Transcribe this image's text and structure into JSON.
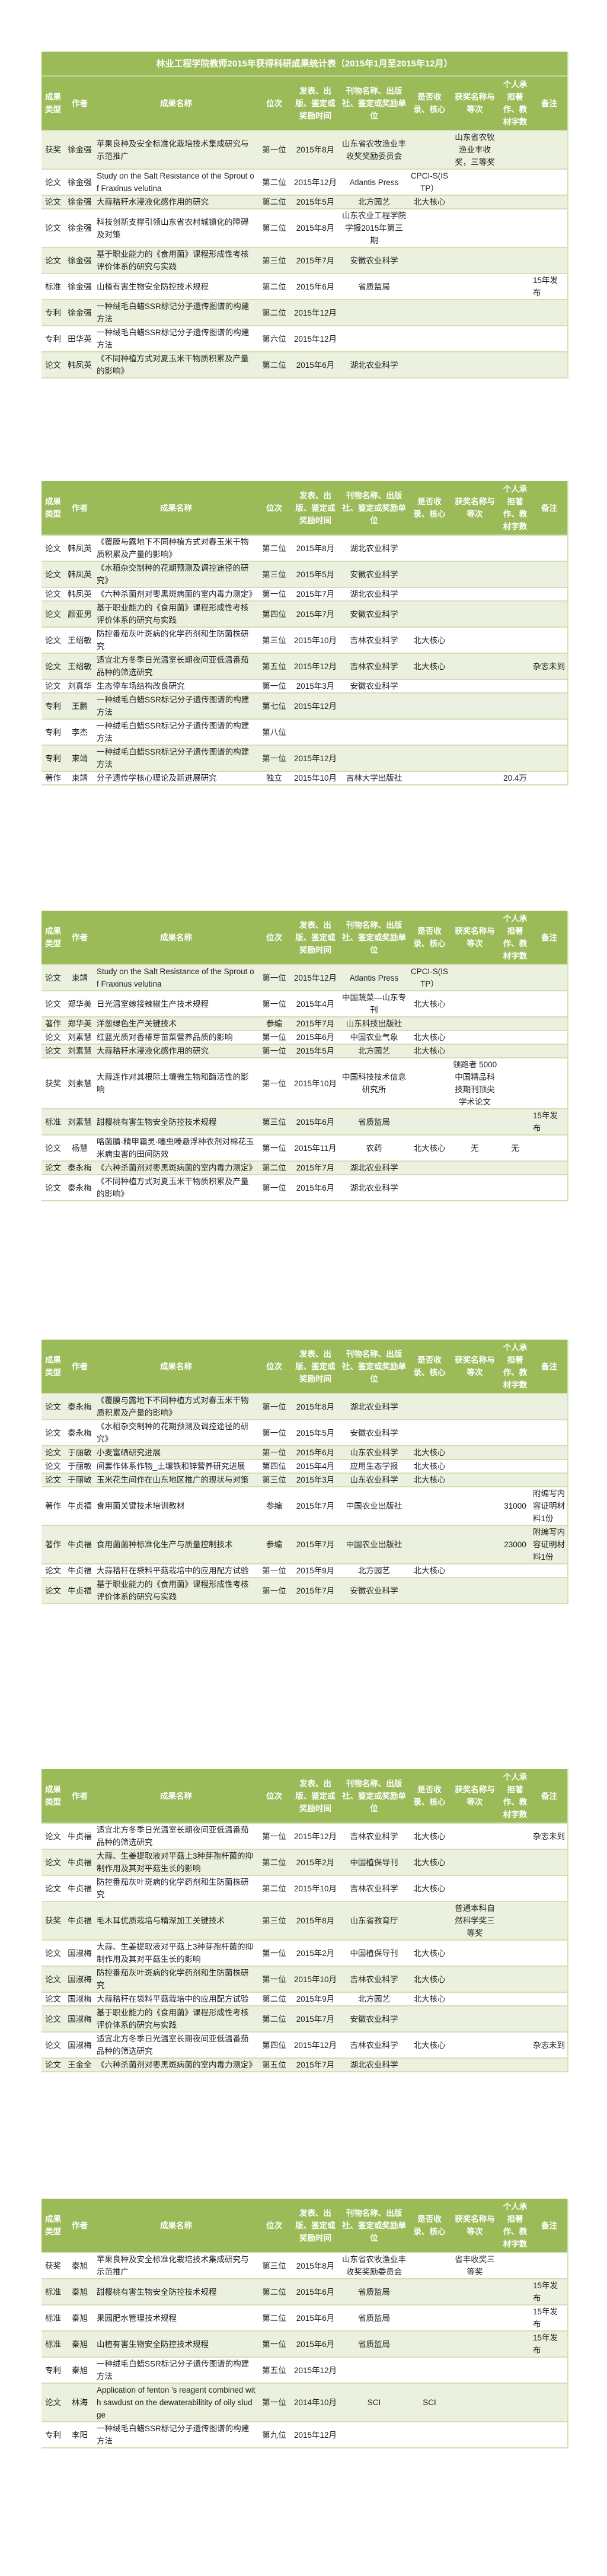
{
  "title": "林业工程学院教师2015年获得科研成果统计表（2015年1月至2015年12月）",
  "columns": [
    "成果类型",
    "作者",
    "成果名称",
    "位次",
    "发表、出版、鉴定或奖励时间",
    "刊物名称、出版社、鉴定或奖励单位",
    "是否收录、核心",
    "获奖名称与等次",
    "个人承担著作、教材字数",
    "备注"
  ],
  "colors": {
    "header": "#9bbb59",
    "stripe": "#ebf1de",
    "border": "#d3e0b3"
  },
  "tables": [
    {
      "rows": [
        [
          "获奖",
          "徐金强",
          "苹果良种及安全标准化栽培技术集成研究与示范推广",
          "第一位",
          "2015年8月",
          "山东省农牧渔业丰收奖奖励委员会",
          "",
          "山东省农牧渔业丰收奖，三等奖",
          "",
          ""
        ],
        [
          "论文",
          "徐金强",
          "Study on the Salt Resistance of the Sprout of Fraxinus velutina",
          "第二位",
          "2015年12月",
          "Atlantis Press",
          "CPCI-S(ISTP）",
          "",
          "",
          ""
        ],
        [
          "论文",
          "徐金强",
          "大蒜秸秆水浸液化感作用的研究",
          "第二位",
          "2015年5月",
          "北方园艺",
          "北大核心",
          "",
          "",
          ""
        ],
        [
          "论文",
          "徐金强",
          "科技创新支撑引领山东省农村城镇化的障碍及对策",
          "第二位",
          "2015年8月",
          "山东农业工程学院学报2015年第三期",
          "",
          "",
          "",
          ""
        ],
        [
          "论文",
          "徐金强",
          "基于职业能力的《食用菌》课程形成性考核评价体系的研究与实践",
          "第三位",
          "2015年7月",
          "安徽农业科学",
          "",
          "",
          "",
          ""
        ],
        [
          "标准",
          "徐金强",
          "山楂有害生物安全防控技术规程",
          "第二位",
          "2015年6月",
          "省质监局",
          "",
          "",
          "",
          "15年发布"
        ],
        [
          "专利",
          "徐金强",
          "一种绒毛白蜡SSR标记分子遗传图谱的构建方法",
          "第二位",
          "2015年12月",
          "",
          "",
          "",
          "",
          ""
        ],
        [
          "专利",
          "田华英",
          "一种绒毛白蜡SSR标记分子遗传图谱的构建方法",
          "第六位",
          "2015年12月",
          "",
          "",
          "",
          "",
          ""
        ],
        [
          "论文",
          "韩凤英",
          "《不同种植方式对夏玉米干物质积累及产量的影响》",
          "第二位",
          "2015年6月",
          "湖北农业科学",
          "",
          "",
          "",
          ""
        ]
      ]
    },
    {
      "rows": [
        [
          "论文",
          "韩凤英",
          "《覆膜与露地下不同种植方式对春玉米干物质积累及产量的影响》",
          "第二位",
          "2015年8月",
          "湖北农业科学",
          "",
          "",
          "",
          ""
        ],
        [
          "论文",
          "韩凤英",
          "《水稻杂交制种的花期预测及调控途径的研究》",
          "第三位",
          "2015年5月",
          "安徽农业科学",
          "",
          "",
          "",
          ""
        ],
        [
          "论文",
          "韩凤英",
          "《六种杀菌剂对枣黑斑病菌的室内毒力测定》",
          "第一位",
          "2015年7月",
          "湖北农业科学",
          "",
          "",
          "",
          ""
        ],
        [
          "论文",
          "颜亚男",
          "基于职业能力的《食用菌》课程形成性考核评价体系的研究与实践",
          "第四位",
          "2015年7月",
          "安徽农业科学",
          "",
          "",
          "",
          ""
        ],
        [
          "论文",
          "王绍敏",
          "防控番茄灰叶斑病的化学药剂和生防菌株研究",
          "第三位",
          "2015年10月",
          "吉林农业科学",
          "北大核心",
          "",
          "",
          ""
        ],
        [
          "论文",
          "王绍敏",
          "适宜北方冬季日光温室长期夜间亚低温番茄品种的筛选研究",
          "第五位",
          "2015年12月",
          "吉林农业科学",
          "北大核心",
          "",
          "",
          "杂志未到"
        ],
        [
          "论文",
          "刘真华",
          "生态停车场结构改良研究",
          "第一位",
          "2015年3月",
          "安徽农业科学",
          "",
          "",
          "",
          ""
        ],
        [
          "专利",
          "王鹏",
          "一种绒毛白蜡SSR标记分子遗传图谱的构建方法",
          "第七位",
          "2015年12月",
          "",
          "",
          "",
          "",
          ""
        ],
        [
          "专利",
          "李杰",
          "一种绒毛白蜡SSR标记分子遗传图谱的构建方法",
          "第八位",
          "",
          "",
          "",
          "",
          "",
          ""
        ],
        [
          "专利",
          "束靖",
          "一种绒毛白蜡SSR标记分子遗传图谱的构建方法",
          "第一位",
          "2015年12月",
          "",
          "",
          "",
          "",
          ""
        ],
        [
          "著作",
          "束靖",
          "分子遗传学核心理论及新进展研究",
          "独立",
          "2015年10月",
          "吉林大学出版社",
          "",
          "",
          "20.4万",
          ""
        ]
      ]
    },
    {
      "rows": [
        [
          "论文",
          "束靖",
          "Study on the Salt Resistance of the Sprout of Fraxinus velutina",
          "第一位",
          "2015年12月",
          "Atlantis Press",
          "CPCI-S(ISTP）",
          "",
          "",
          ""
        ],
        [
          "论文",
          "郑华美",
          "日光温室嫁接辣椒生产技术规程",
          "第一位",
          "2015年4月",
          "中国蔬菜—山东专刊",
          "北大核心",
          "",
          "",
          ""
        ],
        [
          "著作",
          "郑华美",
          "洋葱绿色生产关键技术",
          "参编",
          "2015年7月",
          "山东科技出版社",
          "",
          "",
          "",
          ""
        ],
        [
          "论文",
          "刘素慧",
          "红蓝光质对香椿芽苗菜营养品质的影响",
          "第一位",
          "2015年6月",
          "中国农业气象",
          "北大核心",
          "",
          "",
          ""
        ],
        [
          "论文",
          "刘素慧",
          "大蒜秸秆水浸液化感作用的研究",
          "第一位",
          "2015年5月",
          "北方园艺",
          "北大核心",
          "",
          "",
          ""
        ],
        [
          "获奖",
          "刘素慧",
          "大蒜连作对其根际土壤微生物和酶活性的影响",
          "第一位",
          "2015年10月",
          "中国科技技术信息研究所",
          "",
          "领跑者 5000 中国精品科技期刊顶尖学术论文",
          "",
          ""
        ],
        [
          "标准",
          "刘素慧",
          "甜樱桃有害生物安全防控技术规程",
          "第三位",
          "2015年6月",
          "省质监局",
          "",
          "",
          "",
          "15年发布"
        ],
        [
          "论文",
          "杨慧",
          "咯菌腈·精甲霜灵·噻虫嗪悬浮种衣剂对棉花玉米病虫害的田间防效",
          "第一位",
          "2015年11月",
          "农药",
          "北大核心",
          "无",
          "无",
          ""
        ],
        [
          "论文",
          "秦永梅",
          "《六种杀菌剂对枣黑斑病菌的室内毒力测定》",
          "第二位",
          "2015年7月",
          "湖北农业科学",
          "",
          "",
          "",
          ""
        ],
        [
          "论文",
          "秦永梅",
          "《不同种植方式对夏玉米干物质积累及产量的影响》",
          "第一位",
          "2015年6月",
          "湖北农业科学",
          "",
          "",
          "",
          ""
        ]
      ]
    },
    {
      "rows": [
        [
          "论文",
          "秦永梅",
          "《覆膜与露地下不同种植方式对春玉米干物质积累及产量的影响》",
          "第一位",
          "2015年8月",
          "湖北农业科学",
          "",
          "",
          "",
          ""
        ],
        [
          "论文",
          "秦永梅",
          "《水稻杂交制种的花期预测及调控途径的研究》",
          "第一位",
          "2015年5月",
          "安徽农业科学",
          "",
          "",
          "",
          ""
        ],
        [
          "论文",
          "于丽敏",
          "小麦富硒研究进展",
          "第一位",
          "2015年6月",
          "山东农业科学",
          "北大核心",
          "",
          "",
          ""
        ],
        [
          "论文",
          "于丽敏",
          "间套作体系作物_土壤铁和锌营养研究进展",
          "第四位",
          "2015年4月",
          "应用生态学报",
          "北大核心",
          "",
          "",
          ""
        ],
        [
          "论文",
          "于丽敏",
          "玉米花生间作在山东地区推广的现状与对策",
          "第三位",
          "2015年3月",
          "山东农业科学",
          "北大核心",
          "",
          "",
          ""
        ],
        [
          "著作",
          "牛贞福",
          "食用菌关键技术培训教材",
          "参编",
          "2015年7月",
          "中国农业出版社",
          "",
          "",
          "31000",
          "附编写内容证明材料1份"
        ],
        [
          "著作",
          "牛贞福",
          "食用菌菌种标准化生产与质量控制技术",
          "参编",
          "2015年7月",
          "中国农业出版社",
          "",
          "",
          "23000",
          "附编写内容证明材料1份"
        ],
        [
          "论文",
          "牛贞福",
          "大蒜秸秆在袋料平菇栽培中的应用配方试验",
          "第一位",
          "2015年9月",
          "北方园艺",
          "北大核心",
          "",
          "",
          ""
        ],
        [
          "论文",
          "牛贞福",
          "基于职业能力的《食用菌》课程形成性考核评价体系的研究与实践",
          "第一位",
          "2015年7月",
          "安徽农业科学",
          "",
          "",
          "",
          ""
        ]
      ]
    },
    {
      "rows": [
        [
          "论文",
          "牛贞福",
          "适宜北方冬季日光温室长期夜间亚低温番茄品种的筛选研究",
          "第一位",
          "2015年12月",
          "吉林农业科学",
          "北大核心",
          "",
          "",
          "杂志未到"
        ],
        [
          "论文",
          "牛贞福",
          "大蒜、生姜提取液对平菇上3种芽孢杆菌的抑制作用及其对平菇生长的影响",
          "第二位",
          "2015年2月",
          "中国植保导刊",
          "北大核心",
          "",
          "",
          ""
        ],
        [
          "论文",
          "牛贞福",
          "防控番茄灰叶斑病的化学药剂和生防菌株研究",
          "第二位",
          "2015年10月",
          "吉林农业科学",
          "北大核心",
          "",
          "",
          ""
        ],
        [
          "获奖",
          "牛贞福",
          "毛木耳优质栽培与精深加工关键技术",
          "第三位",
          "2015年8月",
          "山东省教育厅",
          "",
          "普通本科自然科学奖三等奖",
          "",
          ""
        ],
        [
          "论文",
          "国淑梅",
          "大蒜、生姜提取液对平菇上3种芽孢杆菌的抑制作用及其对平菇生长的影响",
          "第一位",
          "2015年2月",
          "中国植保导刊",
          "北大核心",
          "",
          "",
          ""
        ],
        [
          "论文",
          "国淑梅",
          "防控番茄灰叶斑病的化学药剂和生防菌株研究",
          "第一位",
          "2015年10月",
          "吉林农业科学",
          "北大核心",
          "",
          "",
          ""
        ],
        [
          "论文",
          "国淑梅",
          "大蒜秸秆在袋料平菇栽培中的应用配方试验",
          "第二位",
          "2015年9月",
          "北方园艺",
          "北大核心",
          "",
          "",
          ""
        ],
        [
          "论文",
          "国淑梅",
          "基于职业能力的《食用菌》课程形成性考核评价体系的研究与实践",
          "第二位",
          "2015年7月",
          "安徽农业科学",
          "",
          "",
          "",
          ""
        ],
        [
          "论文",
          "国淑梅",
          "适宜北方冬季日光温室长期夜间亚低温番茄品种的筛选研究",
          "第四位",
          "2015年12月",
          "吉林农业科学",
          "北大核心",
          "",
          "",
          "杂志未到"
        ],
        [
          "论文",
          "王金全",
          "《六种杀菌剂对枣黑斑病菌的室内毒力测定》",
          "第五位",
          "2015年7月",
          "湖北农业科学",
          "",
          "",
          "",
          ""
        ]
      ]
    },
    {
      "rows": [
        [
          "获奖",
          "秦旭",
          "苹果良种及安全标准化栽培技术集成研究与示范推广",
          "第三位",
          "2015年8月",
          "山东省农牧渔业丰收奖奖励委员会",
          "",
          "省丰收奖三等奖",
          "",
          ""
        ],
        [
          "标准",
          "秦旭",
          "甜樱桃有害生物安全防控技术规程",
          "第二位",
          "2015年6月",
          "省质监局",
          "",
          "",
          "",
          "15年发布"
        ],
        [
          "标准",
          "秦旭",
          "果园肥水管理技术规程",
          "第二位",
          "2015年6月",
          "省质监局",
          "",
          "",
          "",
          "15年发布"
        ],
        [
          "标准",
          "秦旭",
          "山楂有害生物安全防控技术规程",
          "第一位",
          "2015年6月",
          "省质监局",
          "",
          "",
          "",
          "15年发布"
        ],
        [
          "专利",
          "秦旭",
          "一种绒毛白蜡SSR标记分子遗传图谱的构建方法",
          "第五位",
          "2015年12月",
          "",
          "",
          "",
          "",
          ""
        ],
        [
          "论文",
          "林海",
          "Application of fenton 's reagent combined with sawdust on the dewaterabilitity of oily sludge",
          "第一位",
          "2014年10月",
          "SCI",
          "SCI",
          "",
          "",
          ""
        ],
        [
          "专利",
          "李阳",
          "一种绒毛白蜡SSR标记分子遗传图谱的构建方法",
          "第九位",
          "2015年12月",
          "",
          "",
          "",
          "",
          ""
        ]
      ]
    }
  ]
}
